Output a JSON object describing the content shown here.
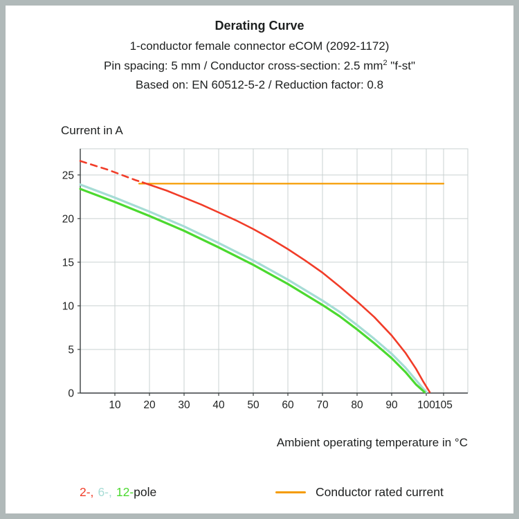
{
  "page": {
    "frame_color": "#b0b9b9",
    "background": "#ffffff"
  },
  "header": {
    "title": "Derating Curve",
    "subtitle1": "1-conductor female connector eCOM (2092-1172)",
    "subtitle2_pre": "Pin spacing: 5 mm / Conductor cross-section: 2.5 mm",
    "subtitle2_sup": "2",
    "subtitle2_post": " \"f-st\"",
    "subtitle3": "Based on: EN 60512-5-2 / Reduction factor: 0.8"
  },
  "chart": {
    "y_axis_title": "Current in A",
    "x_axis_title": "Ambient operating temperature in °C"
  },
  "legend": {
    "poles": [
      {
        "label": "2-,",
        "color": "#f13c28"
      },
      {
        "label": "6-,",
        "color": "#a6dcd5"
      },
      {
        "label": "12-",
        "color": "#4bd92f"
      }
    ],
    "pole_suffix": "pole",
    "rated_label": "Conductor rated current",
    "rated_color": "#f59b00"
  },
  "chart_data": {
    "type": "line",
    "title": "Derating Curve",
    "xlabel": "Ambient operating temperature in °C",
    "ylabel": "Current in A",
    "xlim": [
      0,
      112
    ],
    "ylim": [
      0,
      28
    ],
    "x_ticks": [
      10,
      20,
      30,
      40,
      50,
      60,
      70,
      80,
      90,
      100,
      105
    ],
    "y_ticks": [
      0,
      5,
      10,
      15,
      20,
      25
    ],
    "grid": true,
    "legend_position": "bottom",
    "colors": {
      "grid": "#c9d0d0",
      "axis": "#3a3f40",
      "text": "#1d1f1f"
    },
    "series": [
      {
        "name": "conductor-rated-current",
        "label": "Conductor rated current",
        "color": "#f59b00",
        "width": 2.2,
        "dash": null,
        "points": [
          [
            17,
            24
          ],
          [
            105,
            24
          ]
        ]
      },
      {
        "name": "6-pole",
        "label": "6-pole",
        "color": "#a6dcd5",
        "width": 3.2,
        "dash": null,
        "points": [
          [
            0,
            23.9
          ],
          [
            10,
            22.4
          ],
          [
            20,
            20.8
          ],
          [
            30,
            19.1
          ],
          [
            40,
            17.2
          ],
          [
            50,
            15.2
          ],
          [
            60,
            13.0
          ],
          [
            70,
            10.6
          ],
          [
            75,
            9.3
          ],
          [
            80,
            7.8
          ],
          [
            85,
            6.2
          ],
          [
            90,
            4.5
          ],
          [
            94,
            2.9
          ],
          [
            97,
            1.5
          ],
          [
            100,
            0.1
          ]
        ]
      },
      {
        "name": "12-pole",
        "label": "12-pole",
        "color": "#4bd92f",
        "width": 3.2,
        "dash": null,
        "points": [
          [
            0,
            23.4
          ],
          [
            10,
            21.9
          ],
          [
            20,
            20.3
          ],
          [
            30,
            18.6
          ],
          [
            40,
            16.7
          ],
          [
            50,
            14.7
          ],
          [
            60,
            12.5
          ],
          [
            70,
            10.1
          ],
          [
            75,
            8.8
          ],
          [
            80,
            7.3
          ],
          [
            85,
            5.7
          ],
          [
            90,
            4.0
          ],
          [
            94,
            2.4
          ],
          [
            97,
            1.0
          ],
          [
            99.5,
            0.1
          ]
        ]
      },
      {
        "name": "2-pole-dashed-segment",
        "label": "2-pole (above conductor rated current, dashed)",
        "color": "#f13c28",
        "width": 2.6,
        "dash": "9 7",
        "points": [
          [
            0,
            26.6
          ],
          [
            4,
            26.1
          ],
          [
            8,
            25.6
          ],
          [
            12,
            25.0
          ],
          [
            16,
            24.4
          ],
          [
            18,
            24.15
          ]
        ]
      },
      {
        "name": "2-pole",
        "label": "2-pole",
        "color": "#f13c28",
        "width": 2.6,
        "dash": null,
        "points": [
          [
            18,
            24.15
          ],
          [
            25,
            23.2
          ],
          [
            30,
            22.4
          ],
          [
            35,
            21.6
          ],
          [
            40,
            20.7
          ],
          [
            45,
            19.8
          ],
          [
            50,
            18.8
          ],
          [
            55,
            17.7
          ],
          [
            60,
            16.5
          ],
          [
            65,
            15.2
          ],
          [
            70,
            13.8
          ],
          [
            75,
            12.2
          ],
          [
            80,
            10.5
          ],
          [
            85,
            8.7
          ],
          [
            90,
            6.6
          ],
          [
            94,
            4.6
          ],
          [
            97,
            2.8
          ],
          [
            99,
            1.4
          ],
          [
            101,
            0.1
          ]
        ]
      }
    ]
  }
}
